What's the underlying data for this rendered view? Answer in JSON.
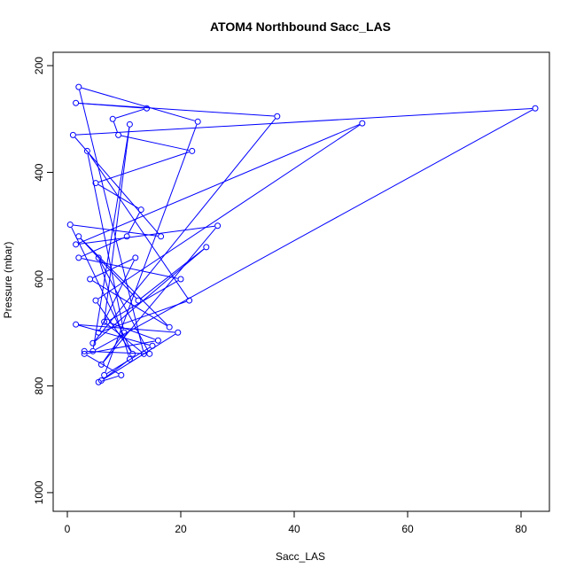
{
  "chart_data": {
    "type": "line",
    "title": "ATOM4 Northbound Sacc_LAS",
    "xlabel": "Sacc_LAS",
    "ylabel": "Pressure (mbar)",
    "xlim": [
      -2.5,
      85
    ],
    "ylim": [
      1035,
      175
    ],
    "y_reversed": true,
    "xticks": [
      0,
      20,
      40,
      60,
      80
    ],
    "yticks": [
      200,
      400,
      600,
      800,
      1000
    ],
    "grid": false,
    "legend": "none",
    "line_color": "#0000ff",
    "marker": "open-circle",
    "series": [
      {
        "x": [
          5.5,
          9.5,
          3,
          16,
          7,
          20,
          2,
          10.5,
          13,
          5,
          22,
          9,
          8,
          14,
          1.5,
          37,
          4.5,
          24.5,
          12.5,
          2,
          18,
          4,
          12,
          5.5,
          21.5,
          3.5,
          10,
          6,
          26.5,
          1.5,
          52,
          5,
          11.5,
          0.5,
          16.5,
          1,
          82.5,
          4.5,
          11,
          6.5,
          13.5,
          2,
          23,
          6.5,
          15,
          1.5,
          19.5,
          6,
          11,
          5.5,
          14.5,
          3
        ],
        "y": [
          793,
          780,
          740,
          715,
          680,
          600,
          560,
          520,
          470,
          420,
          360,
          330,
          300,
          280,
          270,
          295,
          720,
          540,
          640,
          520,
          690,
          600,
          560,
          700,
          640,
          360,
          700,
          760,
          500,
          535,
          308,
          640,
          740,
          498,
          520,
          330,
          280,
          735,
          310,
          680,
          740,
          240,
          305,
          780,
          725,
          685,
          700,
          790,
          750,
          560,
          740,
          735
        ]
      }
    ]
  }
}
